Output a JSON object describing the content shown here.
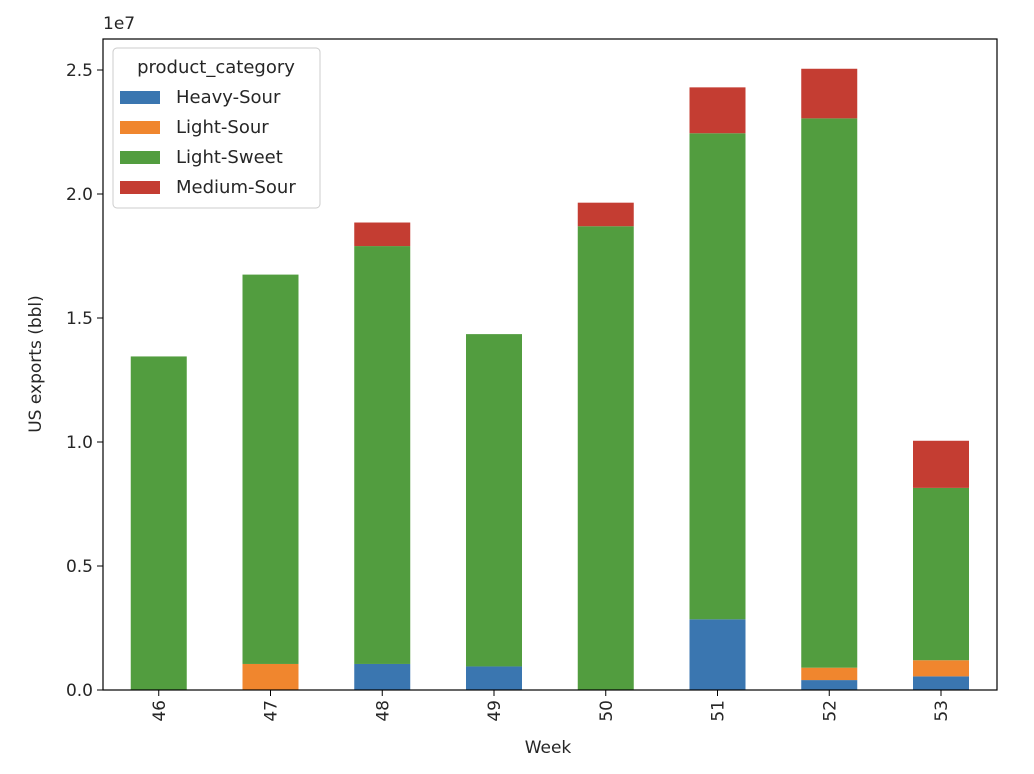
{
  "chart_data": {
    "type": "bar",
    "stacked": true,
    "categories": [
      "46",
      "47",
      "48",
      "49",
      "50",
      "51",
      "52",
      "53"
    ],
    "series": [
      {
        "name": "Heavy-Sour",
        "color": "#3a76b0",
        "values": [
          0,
          0,
          1050000,
          950000,
          0,
          2850000,
          400000,
          550000
        ]
      },
      {
        "name": "Light-Sour",
        "color": "#f0862e",
        "values": [
          0,
          1050000,
          0,
          0,
          0,
          0,
          500000,
          650000
        ]
      },
      {
        "name": "Light-Sweet",
        "color": "#529d3f",
        "values": [
          13450000,
          15700000,
          16850000,
          13400000,
          18700000,
          19600000,
          22150000,
          6950000
        ]
      },
      {
        "name": "Medium-Sour",
        "color": "#c43d32",
        "values": [
          0,
          0,
          950000,
          0,
          950000,
          1850000,
          2000000,
          1900000
        ]
      }
    ],
    "xlabel": "Week",
    "ylabel": "US exports (bbl)",
    "ylim": [
      0,
      26250000
    ],
    "yticks": [
      0,
      5000000,
      10000000,
      15000000,
      20000000,
      25000000
    ],
    "ytick_labels": [
      "0.0",
      "0.5",
      "1.0",
      "1.5",
      "2.0",
      "2.5"
    ],
    "y_offset_label": "1e7",
    "legend": {
      "title": "product_category",
      "placement": "upper-left"
    },
    "grid": false
  }
}
